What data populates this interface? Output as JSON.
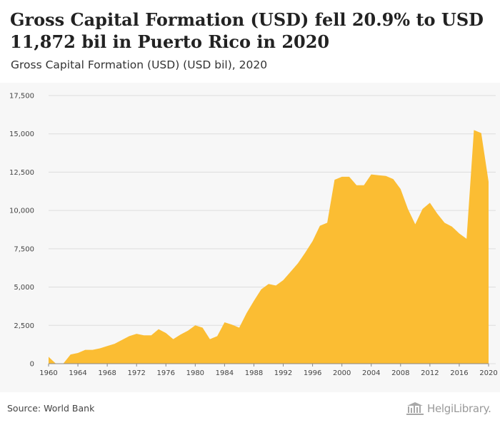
{
  "header": {
    "title": "Gross Capital Formation (USD) fell 20.9% to USD 11,872 bil in Puerto Rico in 2020",
    "subtitle": "Gross Capital Formation (USD) (USD bil), 2020"
  },
  "footer": {
    "source": "Source: World Bank",
    "logo_text": "HelgiLibrary."
  },
  "colors": {
    "area": "#fbbd33",
    "grid": "#dddddd",
    "chart_bg": "#f7f7f7"
  },
  "chart_data": {
    "type": "area",
    "title": "Gross Capital Formation (USD) fell 20.9% to USD 11,872 bil in Puerto Rico in 2020",
    "subtitle": "Gross Capital Formation (USD) (USD bil), 2020",
    "xlabel": "",
    "ylabel": "",
    "xlim": [
      1960,
      2020
    ],
    "ylim": [
      0,
      17500
    ],
    "grid": true,
    "legend": "none",
    "y_ticks": [
      0,
      2500,
      5000,
      7500,
      10000,
      12500,
      15000,
      17500
    ],
    "y_tick_labels": [
      "0",
      "2,500",
      "5,000",
      "7,500",
      "10,000",
      "12,500",
      "15,000",
      "17,500"
    ],
    "x_ticks": [
      1960,
      1964,
      1968,
      1972,
      1976,
      1980,
      1984,
      1988,
      1992,
      1996,
      2000,
      2004,
      2008,
      2012,
      2016,
      2020
    ],
    "x_tick_labels": [
      "1960",
      "1964",
      "1968",
      "1972",
      "1976",
      "1980",
      "1984",
      "1988",
      "1992",
      "1996",
      "2000",
      "2004",
      "2008",
      "2012",
      "2016",
      "2020"
    ],
    "x": [
      1960,
      1961,
      1962,
      1963,
      1964,
      1965,
      1966,
      1967,
      1968,
      1969,
      1970,
      1971,
      1972,
      1973,
      1974,
      1975,
      1976,
      1977,
      1978,
      1979,
      1980,
      1981,
      1982,
      1983,
      1984,
      1985,
      1986,
      1987,
      1988,
      1989,
      1990,
      1991,
      1992,
      1993,
      1994,
      1995,
      1996,
      1997,
      1998,
      1999,
      2000,
      2001,
      2002,
      2003,
      2004,
      2005,
      2006,
      2007,
      2008,
      2009,
      2010,
      2011,
      2012,
      2013,
      2014,
      2015,
      2016,
      2017,
      2018,
      2019,
      2020
    ],
    "values": [
      450,
      0,
      0,
      600,
      700,
      900,
      900,
      1000,
      1150,
      1300,
      1550,
      1800,
      1950,
      1850,
      1850,
      2250,
      2000,
      1600,
      1900,
      2150,
      2500,
      2350,
      1600,
      1800,
      2700,
      2550,
      2350,
      3300,
      4100,
      4850,
      5200,
      5100,
      5450,
      6000,
      6550,
      7250,
      8000,
      9000,
      9200,
      12000,
      12200,
      12200,
      11650,
      11650,
      12350,
      12300,
      12250,
      12050,
      11400,
      10100,
      9100,
      10100,
      10500,
      9800,
      9200,
      8950,
      8500,
      8150,
      15250,
      15050,
      11872
    ]
  }
}
